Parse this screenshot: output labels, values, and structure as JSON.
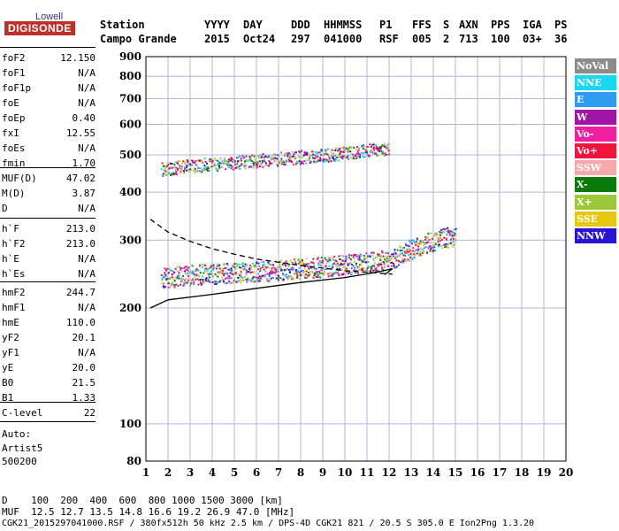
{
  "logo": {
    "top": "Lowell",
    "main": "DIGISONDE"
  },
  "header": {
    "labels": [
      "Station",
      "YYYY",
      "DAY",
      "DDD",
      "HHMMSS",
      "P1",
      "FFS",
      "S",
      "AXN",
      "PPS",
      "IGA",
      "PS"
    ],
    "values": [
      "Campo Grande",
      "2015",
      "Oct24",
      "297",
      "041000",
      "RSF",
      "005",
      "2",
      "713",
      "100",
      "03+",
      "36"
    ]
  },
  "params": {
    "group1": [
      [
        "foF2",
        "12.150"
      ],
      [
        "foF1",
        "N/A"
      ],
      [
        "foF1p",
        "N/A"
      ],
      [
        "foE",
        "N/A"
      ],
      [
        "foEp",
        "0.40"
      ],
      [
        "fxI",
        "12.55"
      ],
      [
        "foEs",
        "N/A"
      ],
      [
        "fmin",
        "1.70"
      ]
    ],
    "group2": [
      [
        "MUF(D)",
        "47.02"
      ],
      [
        "M(D)",
        "3.87"
      ],
      [
        "D",
        "N/A"
      ]
    ],
    "group3": [
      [
        "h`F",
        "213.0"
      ],
      [
        "h`F2",
        "213.0"
      ],
      [
        "h`E",
        "N/A"
      ],
      [
        "h`Es",
        "N/A"
      ]
    ],
    "group4": [
      [
        "hmF2",
        "244.7"
      ],
      [
        "hmF1",
        "N/A"
      ],
      [
        "hmE",
        "110.0"
      ],
      [
        "yF2",
        "20.1"
      ],
      [
        "yF1",
        "N/A"
      ],
      [
        "yE",
        "20.0"
      ],
      [
        "B0",
        "21.5"
      ],
      [
        "B1",
        "1.33"
      ]
    ],
    "group5": [
      [
        "C-level",
        "22"
      ]
    ],
    "auto_label": "Auto:",
    "artist": "Artist5",
    "version": "500200"
  },
  "legend": [
    {
      "label": "NoVal",
      "color": "#8c8c8c"
    },
    {
      "label": "NNE",
      "color": "#19d7f0"
    },
    {
      "label": "E",
      "color": "#2f9cf0"
    },
    {
      "label": "W",
      "color": "#a014a8"
    },
    {
      "label": "Vo-",
      "color": "#f01ea0"
    },
    {
      "label": "Vo+",
      "color": "#f0143c"
    },
    {
      "label": "SSW",
      "color": "#f4aaaa"
    },
    {
      "label": "X-",
      "color": "#0a7a0a"
    },
    {
      "label": "X+",
      "color": "#9cc83c"
    },
    {
      "label": "SSE",
      "color": "#e6c814"
    },
    {
      "label": "NNW",
      "color": "#2814d2"
    }
  ],
  "footer": {
    "line1": "D    100  200  400  600  800 1000 1500 3000 [km]",
    "line2": "MUF  12.5 12.7 13.5 14.8 16.6 19.2 26.9 47.0 [MHz]",
    "line3": "CGK21_2015297041000.RSF / 380fx512h 50 kHz 2.5 km / DPS-4D CGK21 821 / 20.5 S 305.0 E Ion2Png 1.3.20"
  },
  "chart_data": {
    "type": "scatter",
    "xlim": [
      1,
      20
    ],
    "ylim": [
      80,
      900
    ],
    "y_scale": "log",
    "x_ticks": [
      1,
      2,
      3,
      4,
      5,
      6,
      7,
      8,
      9,
      10,
      11,
      12,
      13,
      14,
      15,
      16,
      17,
      18,
      19,
      20
    ],
    "y_ticks": [
      80,
      100,
      200,
      300,
      400,
      500,
      600,
      700,
      800,
      900
    ],
    "grid": true,
    "trace_F_region": [
      [
        1.7,
        240
      ],
      [
        3,
        245
      ],
      [
        5,
        248
      ],
      [
        7,
        252
      ],
      [
        9,
        257
      ],
      [
        11,
        264
      ],
      [
        12.2,
        270
      ],
      [
        13,
        285
      ],
      [
        14,
        300
      ],
      [
        15,
        310
      ]
    ],
    "trace_F_multihop": [
      [
        1.7,
        460
      ],
      [
        3,
        470
      ],
      [
        5,
        480
      ],
      [
        7,
        490
      ],
      [
        9,
        500
      ],
      [
        11,
        515
      ],
      [
        12,
        520
      ]
    ],
    "profile_solid": [
      [
        1.2,
        200
      ],
      [
        2,
        210
      ],
      [
        4,
        217
      ],
      [
        6,
        225
      ],
      [
        8,
        233
      ],
      [
        10,
        240
      ],
      [
        11.5,
        248
      ],
      [
        12.15,
        253
      ],
      [
        11.8,
        244
      ]
    ],
    "profile_dashed": [
      [
        1.2,
        340
      ],
      [
        2,
        315
      ],
      [
        3,
        298
      ],
      [
        4,
        285
      ],
      [
        5,
        276
      ],
      [
        6,
        268
      ],
      [
        8,
        258
      ],
      [
        10,
        250
      ],
      [
        12.15,
        245
      ]
    ]
  }
}
